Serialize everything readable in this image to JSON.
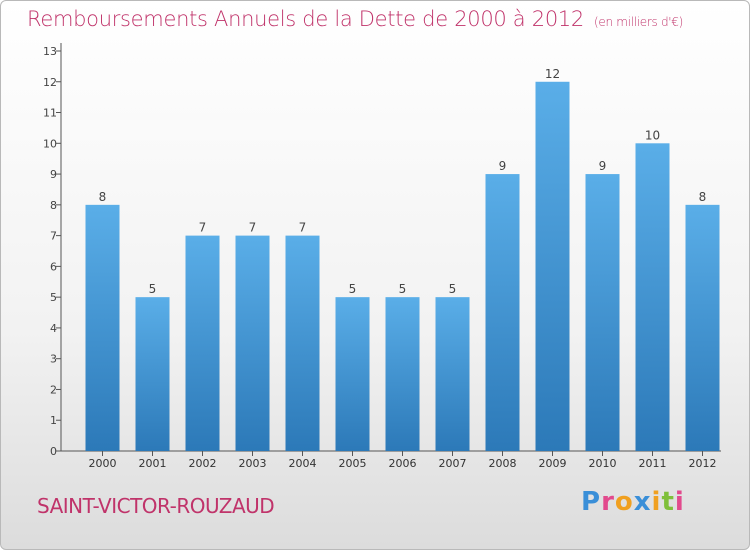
{
  "header": {
    "title": "Remboursements Annuels de la Dette de 2000 à 2012",
    "unit": "(en milliers d'€)"
  },
  "footer": {
    "city": "SAINT-VICTOR-ROUZAUD",
    "logo": "Proxiti",
    "logo_colors": [
      "#3a8fd8",
      "#e24a8d",
      "#f0a020",
      "#3a8fd8",
      "#f0a020",
      "#7fbf3a",
      "#e24a8d"
    ]
  },
  "colors": {
    "bar_top": "#5aaee8",
    "bar_bottom": "#2c79b8",
    "title": "#c0336a",
    "axis": "#555555"
  },
  "chart_data": {
    "type": "bar",
    "title": "Remboursements Annuels de la Dette de 2000 à 2012",
    "categories": [
      "2000",
      "2001",
      "2002",
      "2003",
      "2004",
      "2005",
      "2006",
      "2007",
      "2008",
      "2009",
      "2010",
      "2011",
      "2012"
    ],
    "values": [
      8,
      5,
      7,
      7,
      7,
      5,
      5,
      5,
      9,
      12,
      9,
      10,
      8
    ],
    "y_ticks": [
      "0",
      "1",
      "2",
      "3",
      "4",
      "5",
      "6",
      "7",
      "8",
      "9",
      "10",
      "11",
      "12",
      "13"
    ],
    "ylim": [
      0,
      13
    ],
    "grid": false,
    "legend": "none"
  }
}
